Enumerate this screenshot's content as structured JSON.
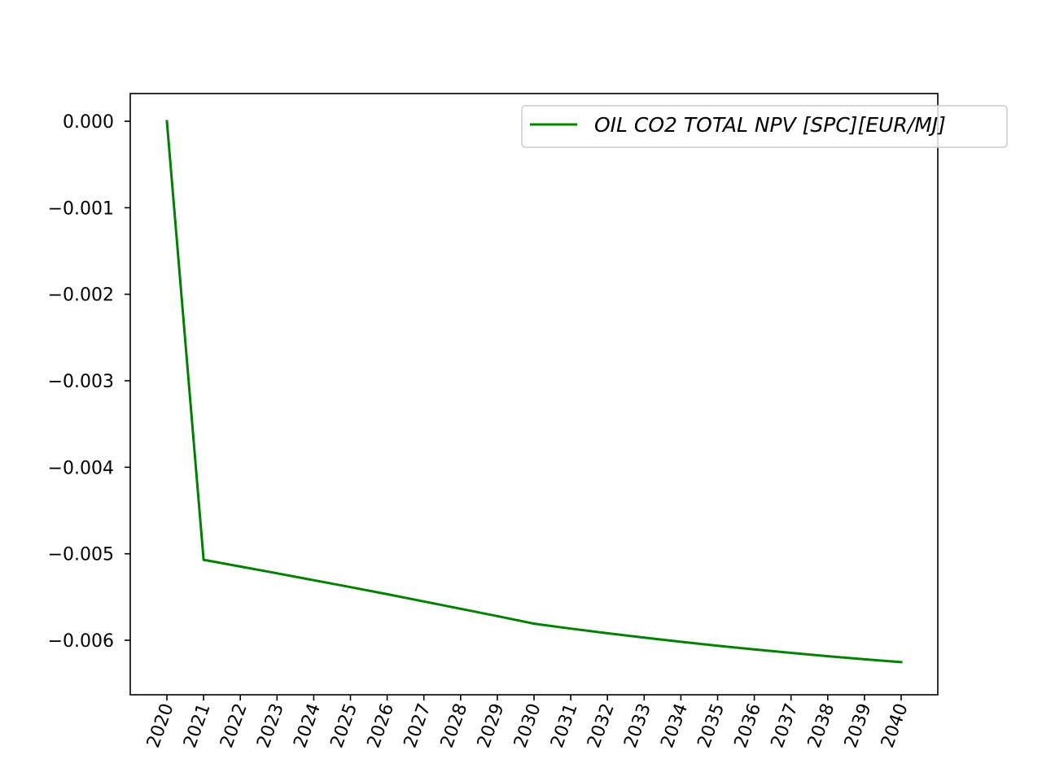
{
  "chart_data": {
    "type": "line",
    "title": "",
    "xlabel": "",
    "ylabel": "",
    "x": [
      "2020",
      "2021",
      "2022",
      "2023",
      "2024",
      "2025",
      "2026",
      "2027",
      "2028",
      "2029",
      "2030",
      "2031",
      "2032",
      "2033",
      "2034",
      "2035",
      "2036",
      "2037",
      "2038",
      "2039",
      "2040"
    ],
    "series": [
      {
        "name": "OIL CO2 TOTAL NPV [SPC][EUR/MJ]",
        "color": "#008000",
        "values": [
          0.0,
          -0.00507,
          -0.005148,
          -0.005226,
          -0.005306,
          -0.005386,
          -0.005468,
          -0.005551,
          -0.005636,
          -0.005721,
          -0.005808,
          -0.005865,
          -0.005919,
          -0.00597,
          -0.006018,
          -0.006063,
          -0.006106,
          -0.006146,
          -0.006184,
          -0.00622,
          -0.006253
        ]
      }
    ],
    "yticks": [
      0.0,
      -0.001,
      -0.002,
      -0.003,
      -0.004,
      -0.005,
      -0.006
    ],
    "ytick_labels": [
      "0.000",
      "−0.001",
      "−0.002",
      "−0.003",
      "−0.004",
      "−0.005",
      "−0.006"
    ],
    "ylim": [
      -0.00663,
      0.00032
    ],
    "legend_position": "top-right",
    "grid": false
  }
}
